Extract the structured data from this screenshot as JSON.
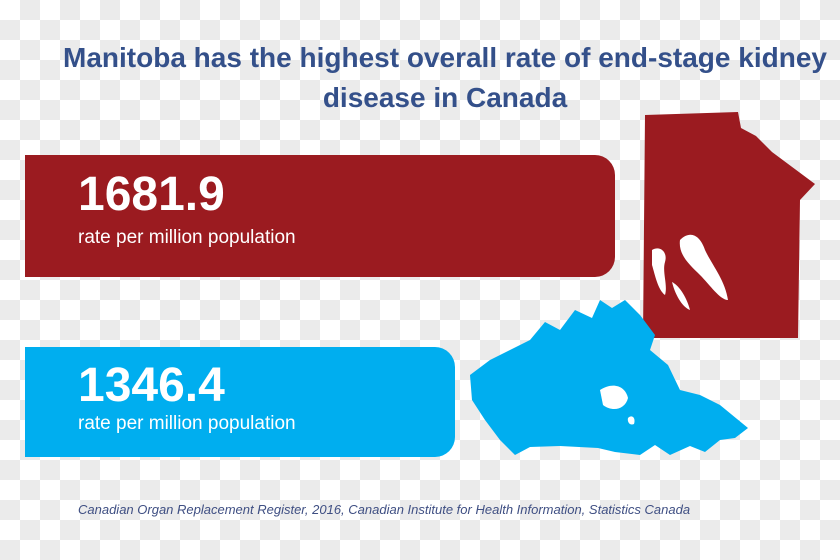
{
  "title": "Manitoba has the highest overall rate of end-stage kidney disease in Canada",
  "manitoba": {
    "value": "1681.9",
    "label": "rate per million population",
    "color": "#9b1b20",
    "icon": "manitoba-map-icon"
  },
  "canada": {
    "value": "1346.4",
    "label": "rate per million population",
    "color": "#00aeef",
    "icon": "canada-map-icon"
  },
  "source": "Canadian Organ Replacement Register, 2016, Canadian Institute for Health Information,  Statistics Canada"
}
